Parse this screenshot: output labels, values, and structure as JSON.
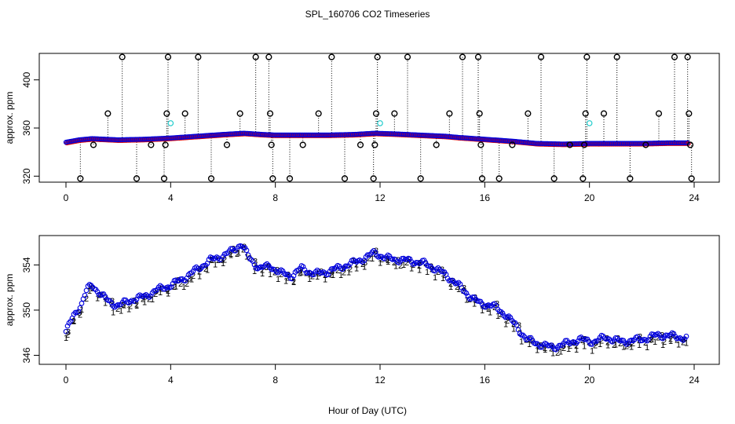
{
  "chart_data": {
    "title": "SPL_160706  CO2 Timeseries",
    "xlabel": "Hour of Day (UTC)",
    "panels": [
      {
        "type": "scatter",
        "ylabel": "approx. ppm",
        "xlim": [
          0,
          24
        ],
        "ylim": [
          315,
          422
        ],
        "x_ticks": [
          0,
          4,
          8,
          12,
          16,
          20,
          24
        ],
        "y_ticks": [
          320,
          360,
          400
        ],
        "colors": {
          "red": "#dd0000",
          "blue": "#0000dd",
          "cyan": "#22cccc",
          "black": "#000000"
        },
        "baseline_curve": [
          [
            0.0,
            348.0
          ],
          [
            0.5,
            350.0
          ],
          [
            1.0,
            351.0
          ],
          [
            1.5,
            350.5
          ],
          [
            2.0,
            350.0
          ],
          [
            3.0,
            350.5
          ],
          [
            4.0,
            351.5
          ],
          [
            5.0,
            353.0
          ],
          [
            6.0,
            354.5
          ],
          [
            6.8,
            355.5
          ],
          [
            7.5,
            354.5
          ],
          [
            8.0,
            354.0
          ],
          [
            9.0,
            354.0
          ],
          [
            10.0,
            354.0
          ],
          [
            11.0,
            354.5
          ],
          [
            11.8,
            355.5
          ],
          [
            12.5,
            355.0
          ],
          [
            13.5,
            354.0
          ],
          [
            14.5,
            353.0
          ],
          [
            15.0,
            352.0
          ],
          [
            16.0,
            350.5
          ],
          [
            17.0,
            349.0
          ],
          [
            18.0,
            347.0
          ],
          [
            19.0,
            346.5
          ],
          [
            20.0,
            347.0
          ],
          [
            21.0,
            347.0
          ],
          [
            22.0,
            347.0
          ],
          [
            23.0,
            347.5
          ],
          [
            23.8,
            347.5
          ]
        ],
        "black_points": [
          [
            0.55,
            318
          ],
          [
            1.05,
            346
          ],
          [
            1.6,
            372
          ],
          [
            2.15,
            419
          ],
          [
            2.7,
            318
          ],
          [
            3.25,
            346
          ],
          [
            3.75,
            318
          ],
          [
            3.8,
            346
          ],
          [
            3.85,
            372
          ],
          [
            3.9,
            419
          ],
          [
            4.55,
            372
          ],
          [
            5.05,
            419
          ],
          [
            5.55,
            318
          ],
          [
            6.15,
            346
          ],
          [
            6.65,
            372
          ],
          [
            7.25,
            419
          ],
          [
            7.75,
            419
          ],
          [
            7.8,
            372
          ],
          [
            7.85,
            346
          ],
          [
            7.9,
            318
          ],
          [
            8.55,
            318
          ],
          [
            9.05,
            346
          ],
          [
            9.65,
            372
          ],
          [
            10.15,
            419
          ],
          [
            10.65,
            318
          ],
          [
            11.25,
            346
          ],
          [
            11.75,
            318
          ],
          [
            11.8,
            346
          ],
          [
            11.85,
            372
          ],
          [
            11.9,
            419
          ],
          [
            12.55,
            372
          ],
          [
            13.05,
            419
          ],
          [
            13.55,
            318
          ],
          [
            14.15,
            346
          ],
          [
            14.65,
            372
          ],
          [
            15.15,
            419
          ],
          [
            15.75,
            419
          ],
          [
            15.8,
            372
          ],
          [
            15.85,
            346
          ],
          [
            15.9,
            318
          ],
          [
            16.55,
            318
          ],
          [
            17.05,
            346
          ],
          [
            17.65,
            372
          ],
          [
            18.15,
            419
          ],
          [
            18.65,
            318
          ],
          [
            19.25,
            346
          ],
          [
            19.75,
            318
          ],
          [
            19.8,
            346
          ],
          [
            19.85,
            372
          ],
          [
            19.9,
            419
          ],
          [
            20.55,
            372
          ],
          [
            21.05,
            419
          ],
          [
            21.55,
            318
          ],
          [
            22.15,
            346
          ],
          [
            22.65,
            372
          ],
          [
            23.25,
            419
          ],
          [
            23.75,
            419
          ],
          [
            23.8,
            372
          ],
          [
            23.85,
            346
          ],
          [
            23.9,
            318
          ]
        ],
        "cyan_points": [
          [
            4.0,
            364
          ],
          [
            12.0,
            364
          ],
          [
            20.0,
            364
          ]
        ]
      },
      {
        "type": "scatter",
        "ylabel": "approx. ppm",
        "xlim": [
          0,
          24
        ],
        "ylim": [
          345.2,
          356.6
        ],
        "x_ticks": [
          0,
          4,
          8,
          12,
          16,
          20,
          24
        ],
        "y_ticks": [
          346,
          350,
          354
        ],
        "colors": {
          "blue": "#0000dd",
          "green": "#00bb00",
          "red": "#dd0000"
        },
        "digit_labels": {
          "blue": "3",
          "green": "2",
          "red": "1"
        },
        "series_curve": [
          [
            0.0,
            348.1
          ],
          [
            0.3,
            349.5
          ],
          [
            0.6,
            350.6
          ],
          [
            0.8,
            351.8
          ],
          [
            1.0,
            352.2
          ],
          [
            1.3,
            351.5
          ],
          [
            1.6,
            350.8
          ],
          [
            2.0,
            350.4
          ],
          [
            2.5,
            350.9
          ],
          [
            3.0,
            351.2
          ],
          [
            3.5,
            351.8
          ],
          [
            4.0,
            352.2
          ],
          [
            4.5,
            352.8
          ],
          [
            5.0,
            353.6
          ],
          [
            5.5,
            354.4
          ],
          [
            6.0,
            354.8
          ],
          [
            6.4,
            355.3
          ],
          [
            6.7,
            355.9
          ],
          [
            7.0,
            354.6
          ],
          [
            7.4,
            353.7
          ],
          [
            7.8,
            353.9
          ],
          [
            8.2,
            353.3
          ],
          [
            8.6,
            353.0
          ],
          [
            9.0,
            353.7
          ],
          [
            9.5,
            353.2
          ],
          [
            10.0,
            353.4
          ],
          [
            10.5,
            353.8
          ],
          [
            11.0,
            354.2
          ],
          [
            11.5,
            354.7
          ],
          [
            11.8,
            355.1
          ],
          [
            12.2,
            354.6
          ],
          [
            13.0,
            354.4
          ],
          [
            13.6,
            354.2
          ],
          [
            14.2,
            353.6
          ],
          [
            14.8,
            352.6
          ],
          [
            15.4,
            351.3
          ],
          [
            15.8,
            350.6
          ],
          [
            16.3,
            350.4
          ],
          [
            16.8,
            349.6
          ],
          [
            17.2,
            348.6
          ],
          [
            17.6,
            347.4
          ],
          [
            18.2,
            346.9
          ],
          [
            18.6,
            346.7
          ],
          [
            19.2,
            347.1
          ],
          [
            19.6,
            347.4
          ],
          [
            20.2,
            347.2
          ],
          [
            20.6,
            347.6
          ],
          [
            21.2,
            347.2
          ],
          [
            21.6,
            347.3
          ],
          [
            22.2,
            347.5
          ],
          [
            22.6,
            347.8
          ],
          [
            23.2,
            347.7
          ],
          [
            23.7,
            347.5
          ]
        ]
      }
    ]
  }
}
